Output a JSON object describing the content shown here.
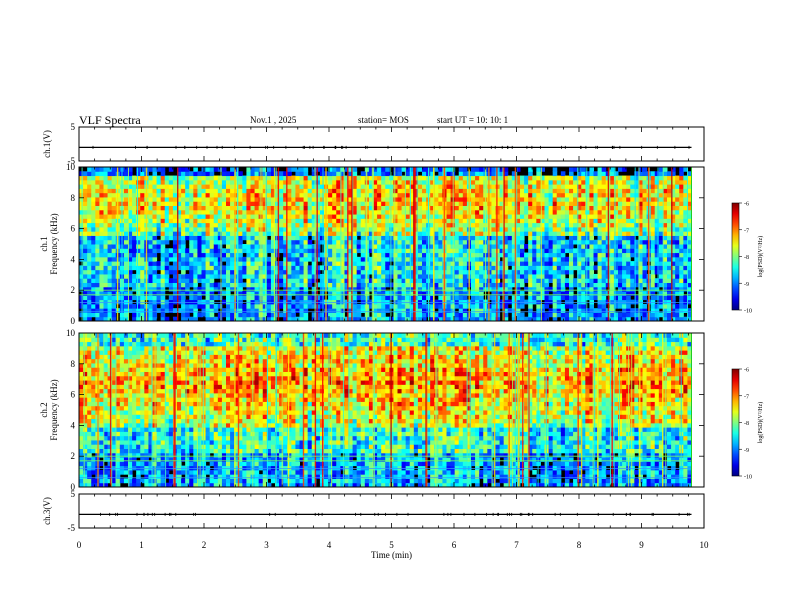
{
  "header": {
    "title": "VLF Spectra",
    "date": "Nov.1  , 2025",
    "station": "station= MOS",
    "start_ut": "start  UT  =   10: 10: 1"
  },
  "chart_data": [
    {
      "type": "line",
      "panel": "ch1-voltage",
      "ylabel": "ch.1(V)",
      "ylim": [
        -5,
        5
      ],
      "y_ticks": [
        "5",
        "-5"
      ],
      "xlim": [
        0,
        10
      ],
      "level": -1.0
    },
    {
      "type": "heatmap",
      "panel": "ch1-spectrogram",
      "ylabel": "ch.1\nFrequency (kHz)",
      "ylim": [
        0,
        10
      ],
      "y_ticks": [
        "0",
        "2",
        "4",
        "6",
        "8",
        "10"
      ],
      "xlim": [
        0,
        10
      ],
      "data_end_min": 9.8,
      "colorbar": {
        "label": "log(PSD)(V²/Hz)",
        "range": [
          -10,
          -6
        ],
        "ticks": [
          "-6",
          "-7",
          "-8",
          "-9",
          "-10"
        ]
      }
    },
    {
      "type": "heatmap",
      "panel": "ch2-spectrogram",
      "ylabel": "ch.2\nFrequency (kHz)",
      "ylim": [
        0,
        10
      ],
      "y_ticks": [
        "0",
        "2",
        "4",
        "6",
        "8",
        "10"
      ],
      "xlim": [
        0,
        10
      ],
      "data_end_min": 9.8,
      "colorbar": {
        "label": "log(PSD)(V²/Hz)",
        "range": [
          -10,
          -6
        ],
        "ticks": [
          "-6",
          "-7",
          "-8",
          "-9",
          "-10"
        ]
      }
    },
    {
      "type": "line",
      "panel": "ch3-voltage",
      "ylabel": "ch.3(V)",
      "ylim": [
        -5,
        5
      ],
      "y_ticks": [
        "5",
        "-5"
      ],
      "xlim": [
        0,
        10
      ],
      "level": -1.0
    }
  ],
  "x_axis": {
    "label": "Time  (min)",
    "ticks": [
      "0",
      "1",
      "2",
      "3",
      "4",
      "5",
      "6",
      "7",
      "8",
      "9",
      "10"
    ]
  },
  "colors": {
    "axes": "#000000",
    "background": "#ffffff",
    "spectrogram_base": "#000000"
  }
}
